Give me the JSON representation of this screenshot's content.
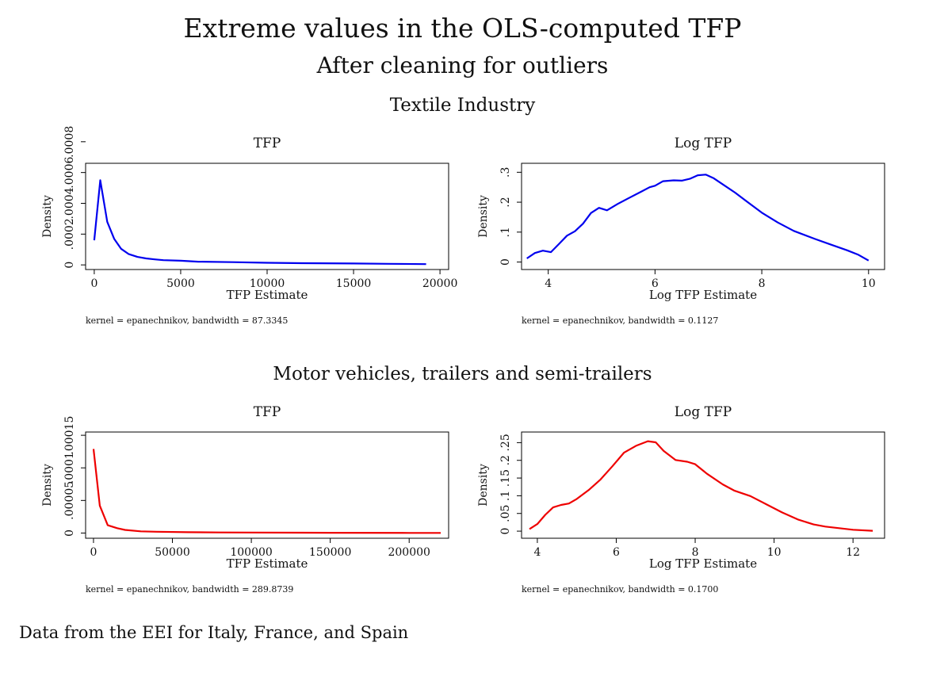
{
  "title": "Extreme values in the OLS-computed TFP",
  "subtitle": "After cleaning for outliers",
  "sections": [
    {
      "title": "Textile Industry"
    },
    {
      "title": "Motor vehicles, trailers and semi-trailers"
    }
  ],
  "note": "Data from the EEI for Italy, France, and Spain",
  "chart_data": [
    {
      "type": "line",
      "section": "Textile Industry",
      "title": "TFP",
      "xlabel": "TFP Estimate",
      "ylabel": "Density",
      "note": "kernel = epanechnikov, bandwidth = 87.3345",
      "color": "#0000ee",
      "xlim": [
        -500,
        20500
      ],
      "ylim": [
        -3e-05,
        0.00066
      ],
      "xticks": [
        0,
        5000,
        10000,
        15000,
        20000
      ],
      "xtick_labels": [
        "0",
        "5000",
        "10000",
        "15000",
        "20000"
      ],
      "yticks": [
        0,
        0.0002,
        0.0004,
        0.0006,
        0.0008
      ],
      "ytick_labels": [
        "0",
        ".0002",
        ".0004",
        ".0006",
        ".0008"
      ],
      "x": [
        0,
        350,
        750,
        1150,
        1550,
        2000,
        2500,
        3000,
        3500,
        4000,
        5000,
        6000,
        8000,
        10000,
        12000,
        15000,
        17000,
        19200
      ],
      "y": [
        0.00016,
        0.00055,
        0.00028,
        0.00017,
        0.000105,
        7e-05,
        5.2e-05,
        4.2e-05,
        3.6e-05,
        3.1e-05,
        2.7e-05,
        2.1e-05,
        1.8e-05,
        1.4e-05,
        1.1e-05,
        9e-06,
        7e-06,
        5e-06
      ]
    },
    {
      "type": "line",
      "section": "Textile Industry",
      "title": "Log TFP",
      "xlabel": "Log TFP Estimate",
      "ylabel": "Density",
      "note": "kernel = epanechnikov, bandwidth = 0.1127",
      "color": "#0000ee",
      "xlim": [
        3.5,
        10.3
      ],
      "ylim": [
        -0.025,
        0.33
      ],
      "xticks": [
        4,
        6,
        8,
        10
      ],
      "xtick_labels": [
        "4",
        "6",
        "8",
        "10"
      ],
      "yticks": [
        0,
        0.1,
        0.2,
        0.3
      ],
      "ytick_labels": [
        "0",
        ".1",
        ".2",
        ".3"
      ],
      "x": [
        3.6,
        3.75,
        3.9,
        4.05,
        4.2,
        4.35,
        4.5,
        4.65,
        4.8,
        4.95,
        5.1,
        5.3,
        5.5,
        5.75,
        5.9,
        6.0,
        6.15,
        6.35,
        6.5,
        6.65,
        6.8,
        6.95,
        7.1,
        7.3,
        7.5,
        7.75,
        8.0,
        8.3,
        8.6,
        9.0,
        9.3,
        9.6,
        9.8,
        10.0
      ],
      "y": [
        0.012,
        0.03,
        0.038,
        0.033,
        0.06,
        0.088,
        0.103,
        0.128,
        0.164,
        0.181,
        0.173,
        0.194,
        0.213,
        0.236,
        0.25,
        0.255,
        0.27,
        0.273,
        0.272,
        0.278,
        0.29,
        0.292,
        0.28,
        0.256,
        0.232,
        0.198,
        0.165,
        0.132,
        0.104,
        0.077,
        0.058,
        0.039,
        0.025,
        0.005
      ]
    },
    {
      "type": "line",
      "section": "Motor vehicles, trailers and semi-trailers",
      "title": "TFP",
      "xlabel": "TFP Estimate",
      "ylabel": "Density",
      "note": "kernel = epanechnikov, bandwidth = 289.8739",
      "color": "#ee0000",
      "xlim": [
        -5000,
        225000
      ],
      "ylim": [
        -8e-06,
        0.000155
      ],
      "xticks": [
        0,
        50000,
        100000,
        150000,
        200000
      ],
      "xtick_labels": [
        "0",
        "50000",
        "100000",
        "150000",
        "200000"
      ],
      "yticks": [
        0,
        5e-05,
        0.0001,
        0.00015
      ],
      "ytick_labels": [
        "0",
        ".00005",
        ".0001",
        ".00015"
      ],
      "x": [
        0,
        4000,
        9000,
        15000,
        20000,
        30000,
        40000,
        60000,
        80000,
        100000,
        150000,
        200000,
        220000
      ],
      "y": [
        0.000129,
        4.2e-05,
        1.2e-05,
        7.5e-06,
        4.8e-06,
        2.6e-06,
        2e-06,
        1.2e-06,
        9e-07,
        7e-07,
        4e-07,
        2e-07,
        1e-07
      ]
    },
    {
      "type": "line",
      "section": "Motor vehicles, trailers and semi-trailers",
      "title": "Log TFP",
      "xlabel": "Log TFP Estimate",
      "ylabel": "Density",
      "note": "kernel = epanechnikov, bandwidth = 0.1700",
      "color": "#ee0000",
      "xlim": [
        3.6,
        12.8
      ],
      "ylim": [
        -0.02,
        0.28
      ],
      "xticks": [
        4,
        6,
        8,
        10,
        12
      ],
      "xtick_labels": [
        "4",
        "6",
        "8",
        "10",
        "12"
      ],
      "yticks": [
        0,
        0.05,
        0.1,
        0.15,
        0.2,
        0.25
      ],
      "ytick_labels": [
        "0",
        ".05",
        ".1",
        ".15",
        ".2",
        ".25"
      ],
      "x": [
        3.8,
        4.0,
        4.2,
        4.4,
        4.6,
        4.8,
        5.0,
        5.3,
        5.6,
        5.9,
        6.2,
        6.5,
        6.8,
        7.0,
        7.2,
        7.5,
        7.8,
        8.0,
        8.3,
        8.7,
        9.0,
        9.4,
        9.8,
        10.2,
        10.6,
        11.0,
        11.3,
        12.0,
        12.5
      ],
      "y": [
        0.006,
        0.02,
        0.046,
        0.067,
        0.074,
        0.078,
        0.091,
        0.116,
        0.146,
        0.183,
        0.222,
        0.241,
        0.254,
        0.251,
        0.227,
        0.201,
        0.196,
        0.189,
        0.162,
        0.132,
        0.114,
        0.099,
        0.076,
        0.053,
        0.033,
        0.019,
        0.013,
        0.004,
        0.001
      ]
    }
  ]
}
